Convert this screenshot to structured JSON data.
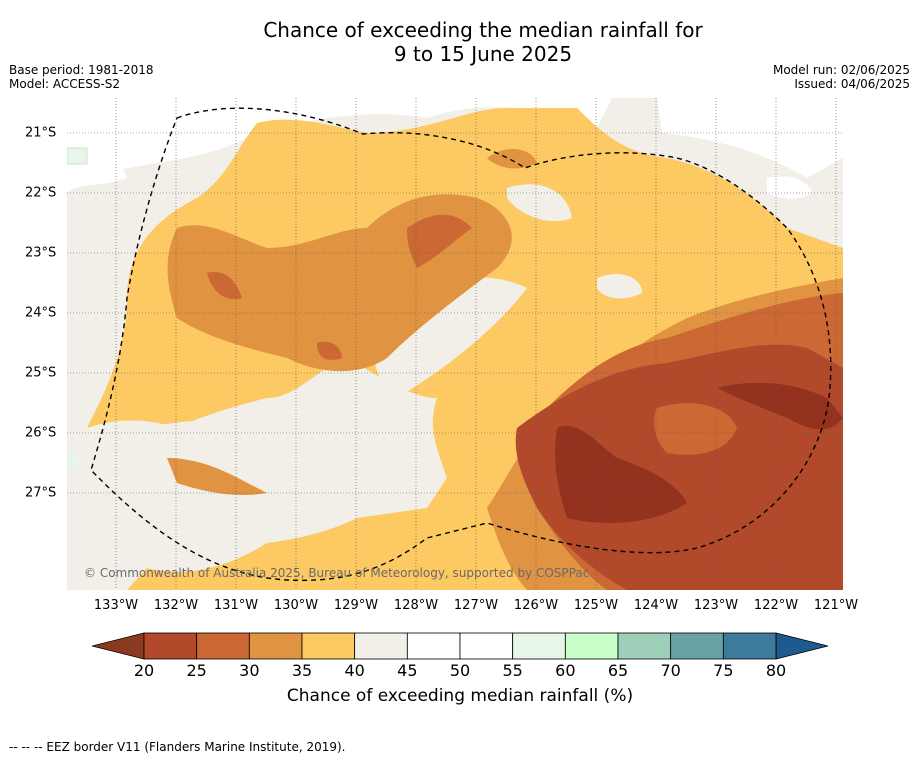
{
  "title_line1": "Chance of exceeding the median rainfall for",
  "title_line2": "9 to 15 June 2025",
  "base_period": "Base period: 1981-2018",
  "model": "Model: ACCESS-S2",
  "model_run": "Model run: 02/06/2025",
  "issued": "Issued: 04/06/2025",
  "copyright": "© Commonwealth of Australia 2025, Bureau of Meteorology, supported by COSPPac",
  "lat_labels": [
    "21°S",
    "22°S",
    "23°S",
    "24°S",
    "25°S",
    "26°S",
    "27°S"
  ],
  "lon_labels": [
    "133°W",
    "132°W",
    "131°W",
    "130°W",
    "129°W",
    "128°W",
    "127°W",
    "126°W",
    "125°W",
    "124°W",
    "123°W",
    "122°W",
    "121°W"
  ],
  "colorbar": {
    "ticks": [
      "20",
      "25",
      "30",
      "35",
      "40",
      "45",
      "50",
      "55",
      "60",
      "65",
      "70",
      "75",
      "80"
    ],
    "label": "Chance of exceeding median rainfall (%)",
    "under_color": "#8b3a20",
    "over_color": "#1f5a8f",
    "bins": [
      {
        "range": "20-25",
        "color": "#b2492a"
      },
      {
        "range": "25-30",
        "color": "#cb6834"
      },
      {
        "range": "30-35",
        "color": "#e09442"
      },
      {
        "range": "35-40",
        "color": "#fdc962"
      },
      {
        "range": "40-45",
        "color": "#f2eee8"
      },
      {
        "range": "45-50",
        "color": "#ffffff"
      },
      {
        "range": "50-55",
        "color": "#ffffff"
      },
      {
        "range": "55-60",
        "color": "#e8f5e9"
      },
      {
        "range": "60-65",
        "color": "#c8ffc8"
      },
      {
        "range": "65-70",
        "color": "#9ecfb8"
      },
      {
        "range": "70-75",
        "color": "#6aa3a6"
      },
      {
        "range": "75-80",
        "color": "#3d7a9c"
      }
    ]
  },
  "footnote": "--  --  -- EEZ border V11 (Flanders Marine Institute, 2019)."
}
